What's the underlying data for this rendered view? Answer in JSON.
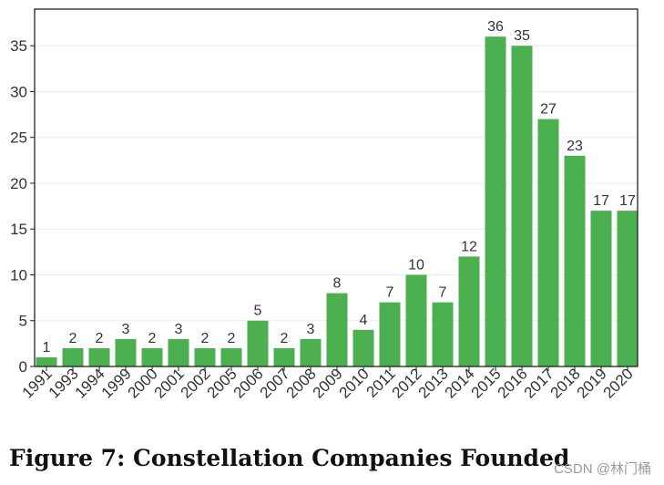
{
  "chart_data": {
    "type": "bar",
    "title": "Figure 7: Constellation Companies Founded",
    "xlabel": "",
    "ylabel": "",
    "categories": [
      "1991",
      "1993",
      "1994",
      "1999",
      "2000",
      "2001",
      "2002",
      "2005",
      "2006",
      "2007",
      "2008",
      "2009",
      "2010",
      "2011",
      "2012",
      "2013",
      "2014",
      "2015",
      "2016",
      "2017",
      "2018",
      "2019",
      "2020"
    ],
    "values": [
      1,
      2,
      2,
      3,
      2,
      3,
      2,
      2,
      5,
      2,
      3,
      8,
      4,
      7,
      10,
      7,
      12,
      36,
      35,
      27,
      23,
      17,
      17
    ],
    "ylim": [
      0,
      39
    ],
    "yticks": [
      0,
      5,
      10,
      15,
      20,
      25,
      30,
      35
    ],
    "bar_color": "#4caf50",
    "grid": true,
    "data_labels": true
  },
  "caption": "Figure 7: Constellation Companies Founded",
  "watermark": "CSDN @林门桶"
}
